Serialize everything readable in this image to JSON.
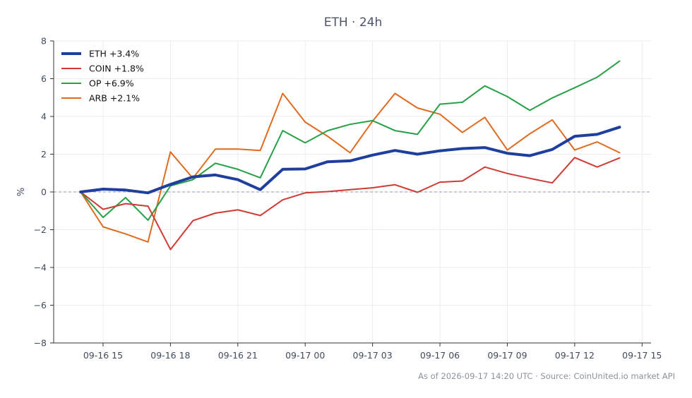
{
  "chart_data": {
    "type": "line",
    "title": "ETH · 24h",
    "ylabel": "%",
    "xlabel": "",
    "ylim": [
      -8,
      8
    ],
    "yticks": [
      8,
      6,
      4,
      2,
      0,
      -2,
      -4,
      -6,
      -8
    ],
    "ytick_labels": [
      "8",
      "6",
      "4",
      "2",
      "0",
      "−2",
      "−4",
      "−6",
      "−8"
    ],
    "x_hours": [
      0,
      1,
      2,
      3,
      4,
      5,
      6,
      7,
      8,
      9,
      10,
      11,
      12,
      13,
      14,
      15,
      16,
      17,
      18,
      19,
      20,
      21,
      22,
      23,
      24
    ],
    "xticks": [
      1,
      4,
      7,
      10,
      13,
      16,
      19,
      22,
      25
    ],
    "xtick_labels": [
      "09-16 15",
      "09-16 18",
      "09-16 21",
      "09-17 00",
      "09-17 03",
      "09-17 06",
      "09-17 09",
      "09-17 12",
      "09-17 15"
    ],
    "xlim": [
      -1.2,
      25.4
    ],
    "zero_line": true,
    "grid": true,
    "legend_position": "top-left",
    "series": [
      {
        "name": "ETH +3.4%",
        "color": "#1f3f9e",
        "width": 4,
        "values": [
          0,
          0.15,
          0.1,
          -0.05,
          0.4,
          0.8,
          0.9,
          0.65,
          0.12,
          1.2,
          1.22,
          1.6,
          1.65,
          1.95,
          2.2,
          2.0,
          2.18,
          2.3,
          2.35,
          2.05,
          1.92,
          2.25,
          2.95,
          3.05,
          3.43
        ]
      },
      {
        "name": "COIN +1.8%",
        "color": "#d03a34",
        "width": 2,
        "values": [
          0,
          -0.92,
          -0.62,
          -0.75,
          -3.05,
          -1.52,
          -1.12,
          -0.95,
          -1.25,
          -0.42,
          -0.05,
          0.02,
          0.12,
          0.22,
          0.38,
          -0.02,
          0.52,
          0.58,
          1.32,
          0.98,
          0.72,
          0.48,
          1.82,
          1.32,
          1.8
        ]
      },
      {
        "name": "OP +6.9%",
        "color": "#27a048",
        "width": 2,
        "values": [
          0,
          -1.35,
          -0.3,
          -1.5,
          0.32,
          0.65,
          1.52,
          1.2,
          0.75,
          3.25,
          2.6,
          3.25,
          3.58,
          3.78,
          3.25,
          3.05,
          4.65,
          4.75,
          5.62,
          5.05,
          4.32,
          4.98,
          5.52,
          6.08,
          6.93
        ]
      },
      {
        "name": "ARB +2.1%",
        "color": "#e06b1f",
        "width": 2,
        "values": [
          0,
          -1.85,
          -2.22,
          -2.65,
          2.12,
          0.72,
          2.27,
          2.27,
          2.2,
          5.22,
          3.7,
          2.95,
          2.08,
          3.75,
          5.22,
          4.45,
          4.12,
          3.15,
          3.95,
          2.22,
          3.08,
          3.82,
          2.22,
          2.65,
          2.08
        ]
      }
    ]
  },
  "footer": "As of 2026-09-17 14:20 UTC · Source: CoinUnited.io market API"
}
